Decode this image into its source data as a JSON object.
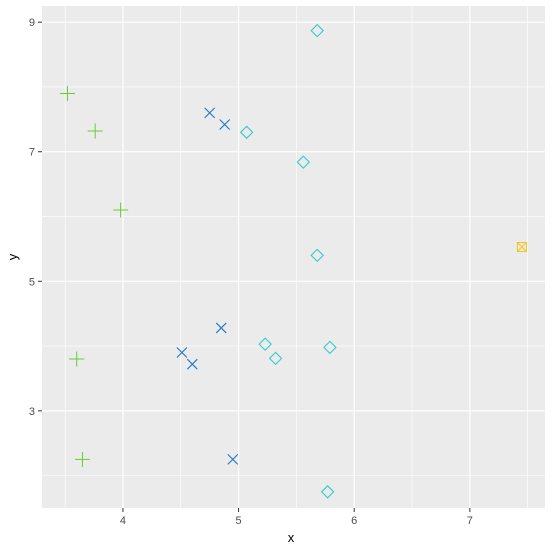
{
  "chart_data": {
    "type": "scatter",
    "title": "",
    "xlabel": "x",
    "ylabel": "y",
    "xlim": [
      3.3,
      7.65
    ],
    "ylim": [
      1.5,
      9.25
    ],
    "x_ticks": [
      4,
      5,
      6,
      7
    ],
    "y_ticks": [
      3,
      5,
      7,
      9
    ],
    "x_tick_labels": [
      "4",
      "5",
      "6",
      "7"
    ],
    "y_tick_labels": [
      "3",
      "5",
      "7",
      "9"
    ],
    "grid": true,
    "legend": "none",
    "background": "#ebebeb",
    "grid_color": "#ffffff",
    "series": [
      {
        "marker": "plus",
        "color": "#66cc33",
        "points": [
          {
            "x": 3.52,
            "y": 7.9
          },
          {
            "x": 3.76,
            "y": 7.32
          },
          {
            "x": 3.98,
            "y": 6.1
          },
          {
            "x": 3.6,
            "y": 3.8
          },
          {
            "x": 3.65,
            "y": 2.25
          }
        ]
      },
      {
        "marker": "cross",
        "color": "#1f78c8",
        "points": [
          {
            "x": 4.75,
            "y": 7.6
          },
          {
            "x": 4.88,
            "y": 7.42
          },
          {
            "x": 4.85,
            "y": 4.28
          },
          {
            "x": 4.51,
            "y": 3.9
          },
          {
            "x": 4.6,
            "y": 3.72
          },
          {
            "x": 4.95,
            "y": 2.25
          }
        ]
      },
      {
        "marker": "diamond",
        "color": "#33cccc",
        "points": [
          {
            "x": 5.68,
            "y": 8.87
          },
          {
            "x": 5.07,
            "y": 7.3
          },
          {
            "x": 5.56,
            "y": 6.84
          },
          {
            "x": 5.68,
            "y": 5.4
          },
          {
            "x": 5.23,
            "y": 4.03
          },
          {
            "x": 5.32,
            "y": 3.81
          },
          {
            "x": 5.79,
            "y": 3.98
          },
          {
            "x": 5.77,
            "y": 1.75
          }
        ]
      },
      {
        "marker": "square-cross",
        "color": "#f5c518",
        "points": [
          {
            "x": 7.45,
            "y": 5.53
          }
        ]
      }
    ]
  }
}
